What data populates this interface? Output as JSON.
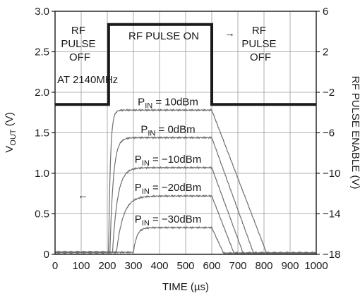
{
  "chart_data": {
    "type": "line",
    "title": "",
    "xlabel": "TIME (µs)",
    "ylabel_main": "V",
    "ylabel_sub": "OUT",
    "ylabel_unit": " (V)",
    "y2label": "RF PULSE ENABLE (V)",
    "xlim": [
      0,
      1000
    ],
    "ylim": [
      0,
      3.0
    ],
    "y2lim": [
      -18,
      6
    ],
    "grid": true,
    "xticks": [
      0,
      100,
      200,
      300,
      400,
      500,
      600,
      700,
      800,
      900,
      1000
    ],
    "yticks": [
      "0",
      "0.5",
      "1.0",
      "1.5",
      "2.0",
      "2.5",
      "3.0"
    ],
    "y2ticks": [
      "−18",
      "−14",
      "−10",
      "−6",
      "−2",
      "2",
      "6"
    ],
    "pulse_enable": {
      "axis": "right",
      "low": -3.2,
      "high": 4.7,
      "on_start": 205,
      "on_end": 600
    },
    "series": [
      {
        "pin": "10dBm",
        "final": 1.78,
        "rise_start": 205,
        "rise_tau": 16,
        "fall_start": 600,
        "fall_end": 810
      },
      {
        "pin": "0dBm",
        "final": 1.44,
        "rise_start": 210,
        "rise_tau": 30,
        "fall_start": 600,
        "fall_end": 760
      },
      {
        "pin": "−10dBm",
        "final": 1.07,
        "rise_start": 220,
        "rise_tau": 45,
        "fall_start": 600,
        "fall_end": 720
      },
      {
        "pin": "−20dBm",
        "final": 0.72,
        "rise_start": 235,
        "rise_tau": 60,
        "fall_start": 600,
        "fall_end": 685
      },
      {
        "pin": "−30dBm",
        "final": 0.33,
        "rise_start": 300,
        "rise_tau": 30,
        "fall_start": 600,
        "fall_end": 645
      }
    ],
    "annotations": {
      "rf_off_left": [
        "RF",
        "PULSE",
        "OFF"
      ],
      "rf_pulse_on": "RF PULSE ON",
      "rf_off_right": [
        "RF",
        "PULSE",
        "OFF"
      ],
      "frequency": "AT 2140MHz",
      "pin_prefix": "P",
      "pin_sub": "IN",
      "pin_eq": " = ",
      "arrow_right": "→",
      "arrow_left": "←"
    }
  }
}
